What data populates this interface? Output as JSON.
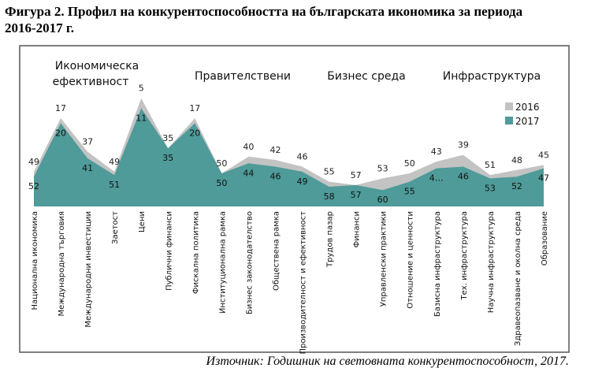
{
  "title_line1": "Фигура 2. Профил на конкурентоспособността на българската икономика за периода",
  "title_line2": "2016-2017 г.",
  "source": "Източник: Годишник на световната конкурентоспособност, 2017.",
  "chart_data": {
    "type": "area",
    "title": "",
    "xlabel": "",
    "ylabel": "",
    "y_axis_inverted": true,
    "ylim": [
      70,
      0
    ],
    "grid": false,
    "legend_position": "top-right",
    "groups": [
      "Икономическа ефективност",
      "Правителствени",
      "Бизнес среда",
      "Инфраструктура"
    ],
    "categories": [
      "Национална икономика",
      "Международна търговия",
      "Международни инвестиции",
      "Заетост",
      "Цени",
      "Публични финанси",
      "Фискална политика",
      "Институционална рамка",
      "Бизнес законодателство",
      "Обществена рамка",
      "Производителност и ефективност",
      "Трудов пазар",
      "Финанси",
      "Управленски практики",
      "Отношение и ценности",
      "Базисна инфраструктура",
      "Тех. инфраструктура",
      "Научна инфраструктура",
      "Здравеопазване и околна среда",
      "Образование"
    ],
    "series": [
      {
        "name": "2016",
        "color": "#c3c3c3",
        "values": [
          49,
          17,
          37,
          49,
          5,
          35,
          17,
          50,
          40,
          42,
          46,
          55,
          57,
          53,
          50,
          43,
          39,
          51,
          48,
          45
        ],
        "labels": [
          "49",
          "17",
          "37",
          "49",
          "5",
          "35",
          "17",
          "50",
          "40",
          "42",
          "46",
          "55",
          "57",
          "53",
          "50",
          "43",
          "39",
          "51",
          "48",
          "45"
        ]
      },
      {
        "name": "2017",
        "color": "#4e9b99",
        "values": [
          52,
          20,
          41,
          51,
          11,
          35,
          20,
          50,
          44,
          46,
          49,
          58,
          57,
          60,
          55,
          47,
          46,
          53,
          52,
          47
        ],
        "labels": [
          "52",
          "20",
          "41",
          "51",
          "11",
          "35",
          "20",
          "50",
          "44",
          "46",
          "49",
          "58",
          "57",
          "60",
          "55",
          "4…",
          "46",
          "53",
          "52",
          "47"
        ]
      }
    ]
  }
}
